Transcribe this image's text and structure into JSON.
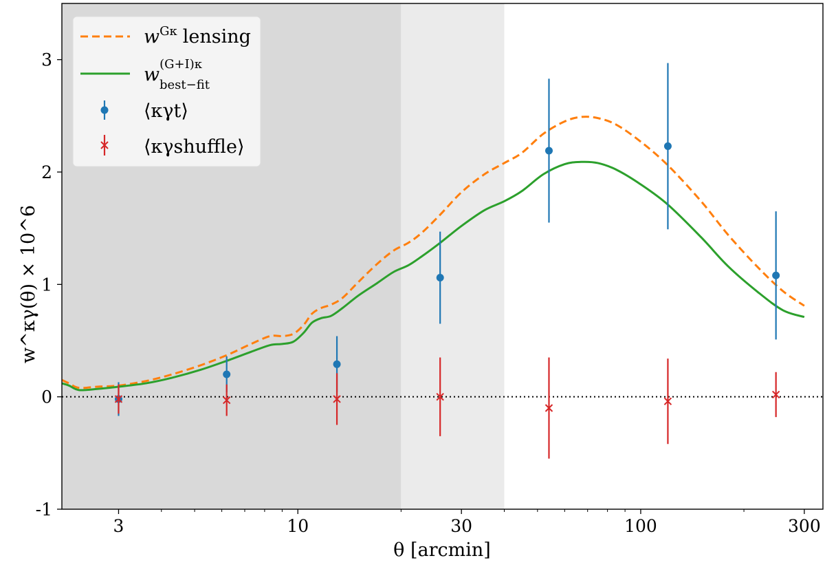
{
  "chart_data": {
    "type": "line",
    "xscale": "log",
    "xlabel": "θ [arcmin]",
    "ylabel": "w^κγ(θ) × 10^6",
    "xlim": [
      2.05,
      340
    ],
    "ylim": [
      -1,
      3.5
    ],
    "xticks": [
      {
        "value": 3,
        "label": "3"
      },
      {
        "value": 10,
        "label": "10"
      },
      {
        "value": 30,
        "label": "30"
      },
      {
        "value": 100,
        "label": "100"
      },
      {
        "value": 300,
        "label": "300"
      }
    ],
    "yticks": [
      {
        "value": -1,
        "label": "-1"
      },
      {
        "value": 0,
        "label": "0"
      },
      {
        "value": 1,
        "label": "1"
      },
      {
        "value": 2,
        "label": "2"
      },
      {
        "value": 3,
        "label": "3"
      }
    ],
    "shaded_regions": [
      {
        "name": "dark-gray-excluded-scales",
        "x_from": 2.05,
        "x_to": 20,
        "color": "#d9d9d9"
      },
      {
        "name": "light-gray-excluded-scales",
        "x_from": 20,
        "x_to": 40,
        "color": "#ebebeb"
      }
    ],
    "reference_line": {
      "y": 0,
      "style": "dotted",
      "color": "#000000"
    },
    "series": [
      {
        "name": "lensing-model",
        "label_main": "w",
        "label_sup": "Gκ",
        "label_rest": "lensing",
        "kind": "line",
        "style": "dashed",
        "color": "#ff7f0e",
        "x": [
          2.05,
          2.15,
          2.3,
          2.6,
          3.0,
          3.6,
          4.3,
          5.2,
          6.2,
          7.3,
          8.3,
          9.0,
          9.7,
          10.4,
          11.0,
          11.7,
          12.5,
          13.5,
          15.0,
          17.0,
          19.0,
          21.0,
          23.0,
          26.0,
          30.0,
          35.0,
          40.0,
          45.0,
          52.0,
          60.0,
          67.0,
          75.0,
          85.0,
          100.0,
          120.0,
          150.0,
          180.0,
          220.0,
          260.0,
          300.0
        ],
        "y": [
          0.15,
          0.12,
          0.08,
          0.09,
          0.1,
          0.14,
          0.2,
          0.28,
          0.37,
          0.47,
          0.54,
          0.54,
          0.56,
          0.64,
          0.74,
          0.79,
          0.82,
          0.88,
          1.02,
          1.18,
          1.3,
          1.37,
          1.46,
          1.62,
          1.82,
          1.98,
          2.08,
          2.17,
          2.34,
          2.45,
          2.49,
          2.48,
          2.42,
          2.27,
          2.06,
          1.74,
          1.44,
          1.15,
          0.94,
          0.81
        ]
      },
      {
        "name": "best-fit-model",
        "label_main": "w",
        "label_sup": "(G+I)κ",
        "label_sub": "best−fit",
        "kind": "line",
        "style": "solid",
        "color": "#2ca02c",
        "x": [
          2.05,
          2.15,
          2.3,
          2.6,
          3.0,
          3.6,
          4.3,
          5.2,
          6.2,
          7.3,
          8.3,
          9.0,
          9.7,
          10.4,
          11.0,
          11.7,
          12.5,
          13.5,
          15.0,
          17.0,
          19.0,
          21.0,
          23.0,
          26.0,
          30.0,
          35.0,
          40.0,
          45.0,
          52.0,
          60.0,
          67.0,
          75.0,
          85.0,
          100.0,
          120.0,
          150.0,
          180.0,
          220.0,
          260.0,
          300.0
        ],
        "y": [
          0.12,
          0.1,
          0.06,
          0.07,
          0.09,
          0.12,
          0.17,
          0.24,
          0.32,
          0.4,
          0.46,
          0.47,
          0.49,
          0.57,
          0.66,
          0.7,
          0.72,
          0.79,
          0.9,
          1.01,
          1.11,
          1.17,
          1.25,
          1.37,
          1.52,
          1.66,
          1.74,
          1.83,
          1.98,
          2.07,
          2.09,
          2.08,
          2.02,
          1.89,
          1.71,
          1.42,
          1.16,
          0.93,
          0.77,
          0.71
        ]
      },
      {
        "name": "kappa-gamma-t",
        "label": "⟨κγt⟩",
        "kind": "errorbar",
        "marker": "circle",
        "color": "#1f77b4",
        "x": [
          3.0,
          6.2,
          13.0,
          26.0,
          54.0,
          120.0,
          248.0
        ],
        "y": [
          -0.02,
          0.2,
          0.29,
          1.06,
          2.19,
          2.23,
          1.08
        ],
        "err": [
          0.15,
          0.16,
          0.25,
          0.41,
          0.64,
          0.74,
          0.57
        ]
      },
      {
        "name": "kappa-gamma-shuffle",
        "label": "⟨κγshuffle⟩",
        "kind": "errorbar",
        "marker": "x",
        "color": "#d62728",
        "x": [
          3.0,
          6.2,
          13.0,
          26.0,
          54.0,
          120.0,
          248.0
        ],
        "y": [
          -0.02,
          -0.03,
          -0.02,
          0.0,
          -0.1,
          -0.04,
          0.02
        ],
        "err": [
          0.13,
          0.14,
          0.23,
          0.35,
          0.45,
          0.38,
          0.2
        ]
      }
    ],
    "legend": {
      "location": "top-left"
    }
  }
}
